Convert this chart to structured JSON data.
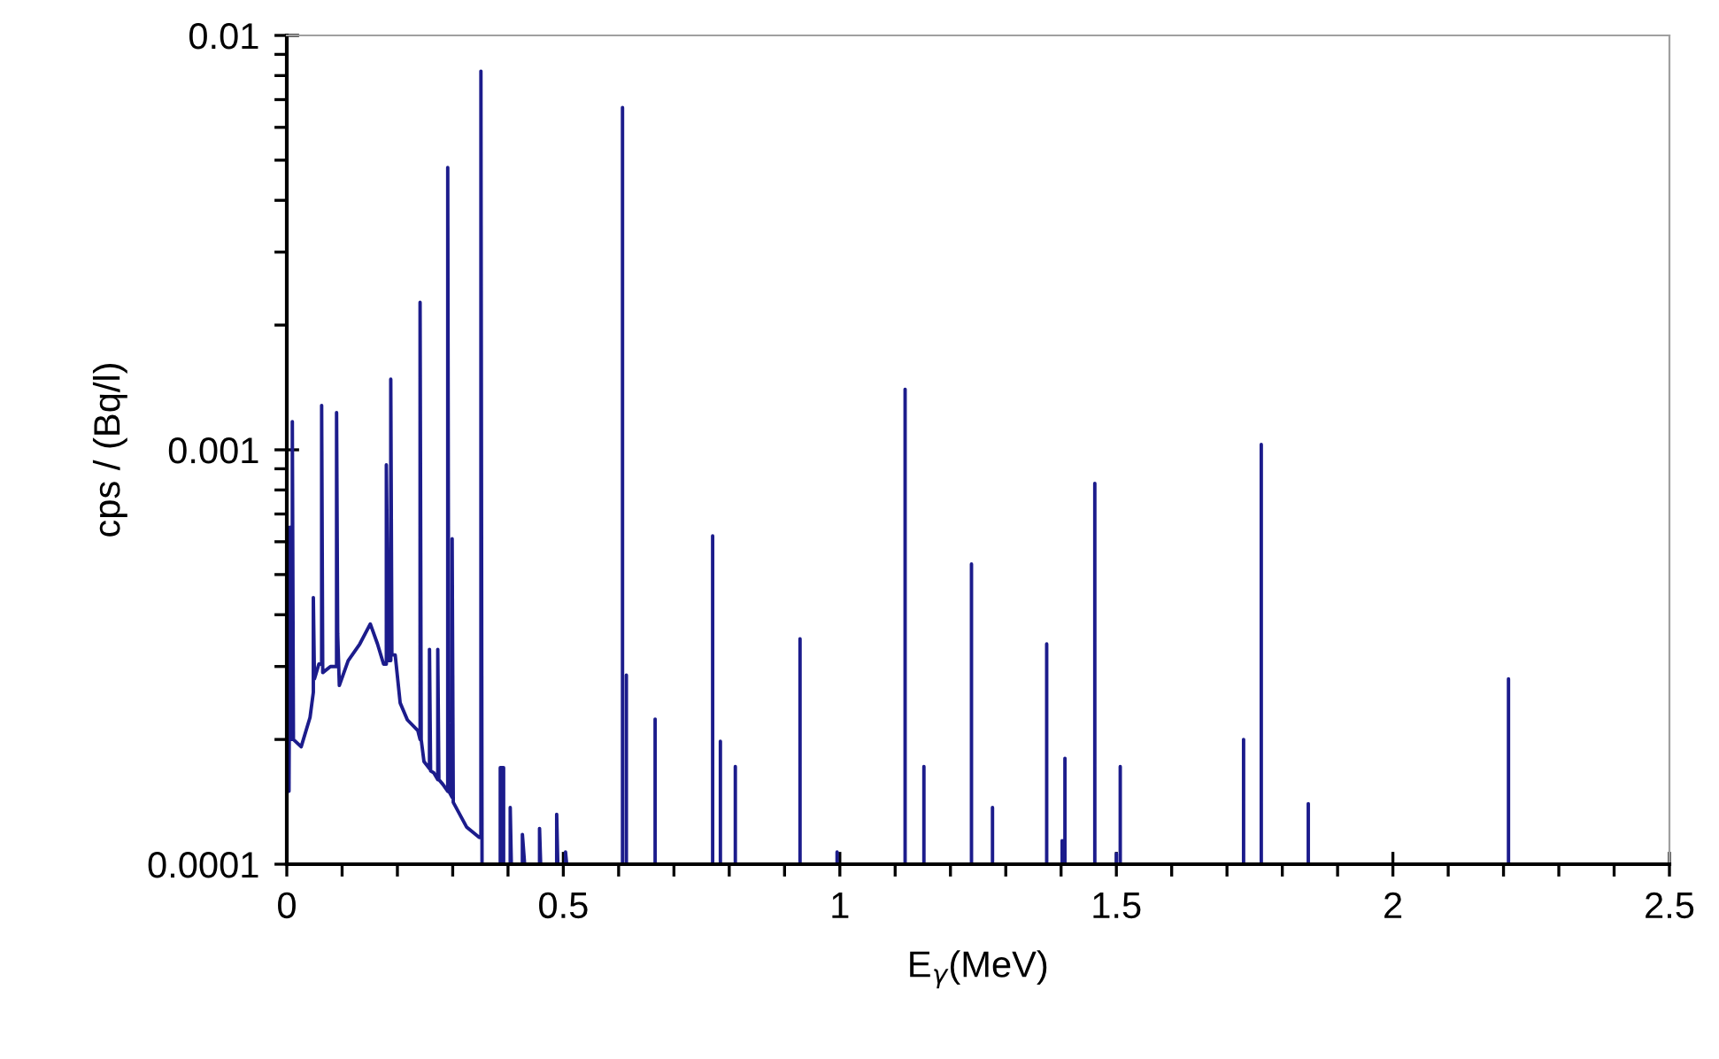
{
  "chart_data": {
    "type": "line",
    "xlabel": "E$_{γ}$(MeV)",
    "ylabel": "cps / (Bq/l)",
    "log": "y",
    "xlim": [
      0,
      2.5
    ],
    "ylim": [
      0.0001,
      0.01
    ],
    "xticks": [
      0,
      0.5,
      1,
      1.5,
      2,
      2.5
    ],
    "yticks": [
      0.0001,
      0.001,
      0.01
    ],
    "grid": false,
    "legend": false,
    "marker": "none",
    "line_style": "solid",
    "series": [
      {
        "color": "#1c1c8c",
        "x": [
          0,
          0,
          0.002,
          0.004,
          0.006,
          0.008,
          0.01,
          0.01,
          0.012,
          0.026,
          0.042,
          0.048,
          0.048,
          0.05,
          0.058,
          0.063,
          0.063,
          0.065,
          0.079,
          0.09,
          0.09,
          0.092,
          0.095,
          0.111,
          0.132,
          0.151,
          0.164,
          0.175,
          0.18,
          0.18,
          0.184,
          0.188,
          0.188,
          0.19,
          0.196,
          0.205,
          0.218,
          0.237,
          0.241,
          0.241,
          0.243,
          0.248,
          0.258,
          0.258,
          0.26,
          0.266,
          0.273,
          0.273,
          0.275,
          0.282,
          0.291,
          0.291,
          0.293,
          0.299,
          0.299,
          0.301,
          0.325,
          0.348,
          0.351,
          0.351,
          0.353,
          0.386,
          0.386,
          0.392,
          0.392,
          0.404,
          0.404,
          0.406,
          0.426,
          0.426,
          0.43,
          0.457,
          0.457,
          0.459,
          0.488,
          0.488,
          0.49,
          0.504,
          0.504,
          0.506,
          0.607,
          0.607,
          0.607,
          0.614,
          0.614,
          0.614,
          0.666,
          0.666,
          0.666,
          0.77,
          0.77,
          0.77,
          0.784,
          0.784,
          0.784,
          0.811,
          0.811,
          0.811,
          0.928,
          0.928,
          0.928,
          0.995,
          0.995,
          0.995,
          1.118,
          1.118,
          1.118,
          1.152,
          1.152,
          1.152,
          1.238,
          1.238,
          1.238,
          1.276,
          1.276,
          1.276,
          1.374,
          1.374,
          1.374,
          1.402,
          1.402,
          1.402,
          1.407,
          1.407,
          1.407,
          1.461,
          1.461,
          1.461,
          1.5,
          1.5,
          1.5,
          1.507,
          1.507,
          1.507,
          1.73,
          1.73,
          1.73,
          1.762,
          1.762,
          1.762,
          1.847,
          1.847,
          1.847,
          2.209,
          2.209,
          2.209
        ],
        "values": [
          0.0001,
          0.00015,
          0.00065,
          0.00015,
          0.00065,
          0.0002,
          0.0002,
          0.00117,
          0.0002,
          0.000192,
          0.000226,
          0.00026,
          0.00044,
          0.00028,
          0.000304,
          0.000304,
          0.00128,
          0.00029,
          0.0003,
          0.0003,
          0.00123,
          0.00036,
          0.00027,
          0.00031,
          0.00034,
          0.00038,
          0.00034,
          0.000304,
          0.000304,
          0.00092,
          0.00031,
          0.00031,
          0.00148,
          0.00032,
          0.00032,
          0.000245,
          0.000223,
          0.00021,
          0.0002,
          0.00227,
          0.0002,
          0.000177,
          0.00017,
          0.00033,
          0.000168,
          0.000166,
          0.00016,
          0.00033,
          0.00016,
          0.000156,
          0.00015,
          0.0048,
          0.00015,
          0.000145,
          0.00061,
          0.000141,
          0.000123,
          0.000116,
          0.000116,
          0.0082,
          0.0001,
          0.0001,
          0.000171,
          0.000171,
          0.0001,
          0.0001,
          0.000137,
          0.0001,
          0.0001,
          0.000118,
          0.0001,
          0.0001,
          0.000122,
          0.0001,
          0.0001,
          0.000132,
          0.0001,
          0.0001,
          0.000107,
          0.0001,
          0.0001,
          0.0067,
          0.0001,
          0.0001,
          0.000286,
          0.0001,
          0.0001,
          0.000224,
          0.0001,
          0.0001,
          0.00062,
          0.0001,
          0.0001,
          0.000198,
          0.0001,
          0.0001,
          0.000172,
          0.0001,
          0.0001,
          0.00035,
          0.0001,
          0.0001,
          0.000107,
          0.0001,
          0.0001,
          0.0014,
          0.0001,
          0.0001,
          0.000172,
          0.0001,
          0.0001,
          0.00053,
          0.0001,
          0.0001,
          0.000137,
          0.0001,
          0.0001,
          0.00034,
          0.0001,
          0.0001,
          0.000114,
          0.0001,
          0.0001,
          0.00018,
          0.0001,
          0.0001,
          0.00083,
          0.0001,
          0.0001,
          0.000106,
          0.0001,
          0.0001,
          0.000172,
          0.0001,
          0.0001,
          0.0002,
          0.0001,
          0.0001,
          0.00103,
          0.0001,
          0.0001,
          0.00014,
          0.0001,
          0.0001,
          0.00028,
          0.0001
        ]
      }
    ]
  }
}
